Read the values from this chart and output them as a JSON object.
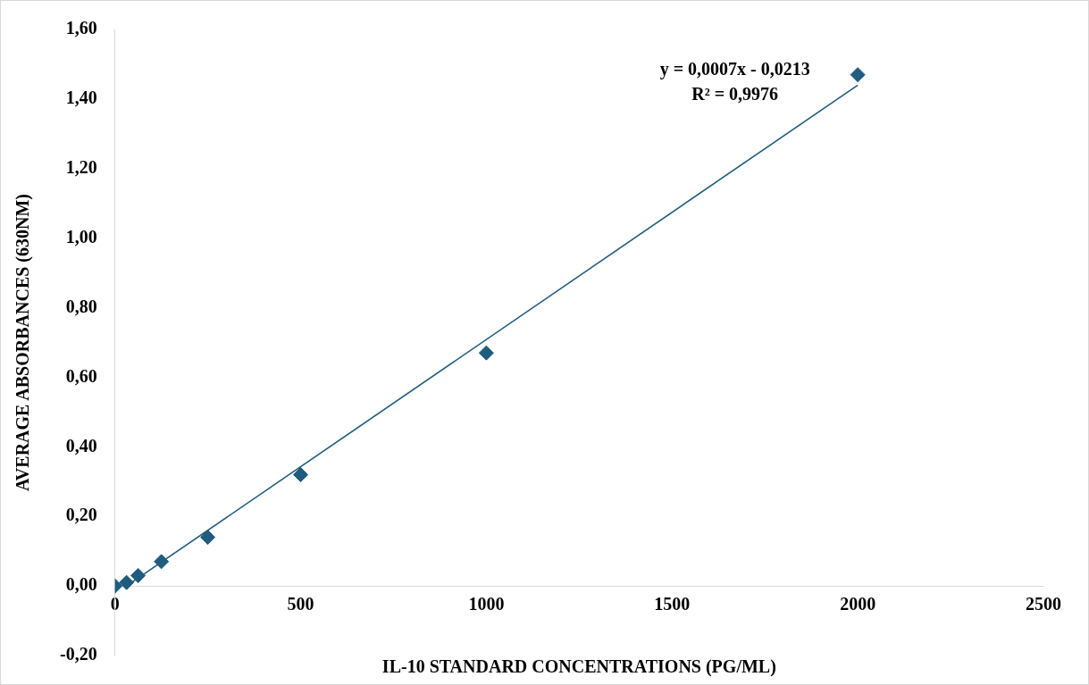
{
  "chart_data": {
    "type": "scatter",
    "xlabel": "IL-10 STANDARD CONCENTRATIONS (PG/ML)",
    "ylabel": "AVERAGE ABSORBANCES (630NM)",
    "annotations": [
      "y = 0,0007x - 0,0213",
      "R² = 0,9976"
    ],
    "grid": false,
    "legend": false,
    "xlim": [
      0,
      2500
    ],
    "xticks": [
      0,
      500,
      1000,
      1500,
      2000,
      2500
    ],
    "ylim": [
      -0.2,
      1.6
    ],
    "yticks": [
      {
        "value": -0.2,
        "label": "-0,20"
      },
      {
        "value": 0,
        "label": "0,00"
      },
      {
        "value": 0.2,
        "label": "0,20"
      },
      {
        "value": 0.4,
        "label": "0,40"
      },
      {
        "value": 0.6,
        "label": "0,60"
      },
      {
        "value": 0.8,
        "label": "0,80"
      },
      {
        "value": 1,
        "label": "1,00"
      },
      {
        "value": 1.2,
        "label": "1,20"
      },
      {
        "value": 1.4,
        "label": "1,40"
      },
      {
        "value": 1.6,
        "label": "1,60"
      }
    ],
    "series": [
      {
        "type": "scatter",
        "marker": "diamond",
        "color": "#1f5c7e",
        "x": [
          0,
          31.25,
          62.5,
          125,
          250,
          500,
          1000,
          2000
        ],
        "values": [
          0,
          0.01,
          0.03,
          0.07,
          0.14,
          0.32,
          0.67,
          1.47
        ]
      },
      {
        "type": "line",
        "marker": "none",
        "color": "#1f5c7e",
        "x": [
          31.25,
          2000
        ],
        "values": [
          0,
          1.44
        ]
      }
    ]
  }
}
